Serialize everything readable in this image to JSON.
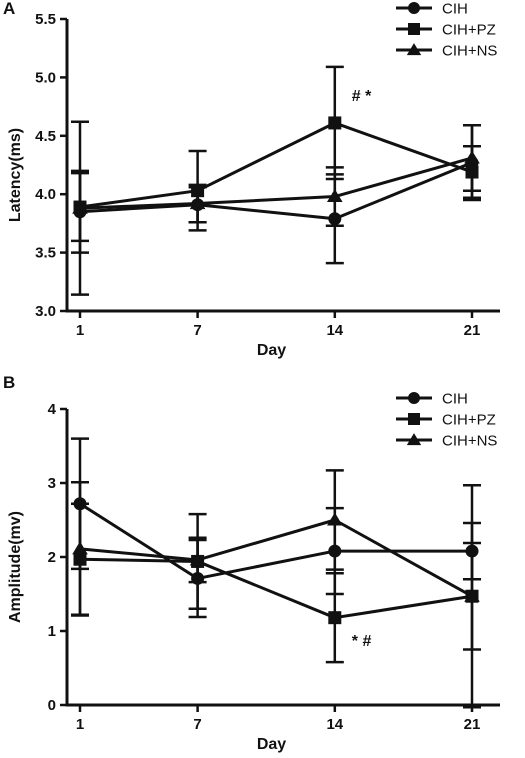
{
  "chart_data": [
    {
      "panel": "A",
      "type": "line",
      "xlabel": "Day",
      "ylabel": "Latency(ms)",
      "x": [
        1,
        7,
        14,
        21
      ],
      "x_ticks": [
        "1",
        "7",
        "14",
        "21"
      ],
      "ylim": [
        3.0,
        5.5
      ],
      "y_ticks": [
        "3.0",
        "3.5",
        "4.0",
        "4.5",
        "5.0",
        "5.5"
      ],
      "legend_position": "top-right",
      "series": [
        {
          "name": "CIH",
          "marker": "circle",
          "values": [
            3.85,
            3.91,
            3.79,
            4.27
          ],
          "error": [
            0.35,
            0.15,
            0.38,
            0.32
          ]
        },
        {
          "name": "CIH+PZ",
          "marker": "square",
          "values": [
            3.89,
            4.03,
            4.61,
            4.19
          ],
          "error": [
            0.29,
            0.34,
            0.48,
            0.22
          ]
        },
        {
          "name": "CIH+NS",
          "marker": "triangle",
          "values": [
            3.88,
            3.92,
            3.98,
            4.31
          ],
          "error": [
            0.74,
            0.16,
            0.25,
            0.28
          ]
        }
      ],
      "annotations": [
        {
          "text": "# *",
          "x": 14,
          "y": 4.85
        }
      ]
    },
    {
      "panel": "B",
      "type": "line",
      "xlabel": "Day",
      "ylabel": "Amplitude(mv)",
      "x": [
        1,
        7,
        14,
        21
      ],
      "x_ticks": [
        "1",
        "7",
        "14",
        "21"
      ],
      "ylim": [
        0,
        4
      ],
      "y_ticks": [
        "0",
        "1",
        "2",
        "3",
        "4"
      ],
      "legend_position": "top-right",
      "series": [
        {
          "name": "CIH",
          "marker": "circle",
          "values": [
            2.72,
            1.71,
            2.08,
            2.08
          ],
          "error": [
            0.88,
            0.52,
            0.58,
            0.38
          ]
        },
        {
          "name": "CIH+PZ",
          "marker": "square",
          "values": [
            1.97,
            1.94,
            1.18,
            1.47
          ],
          "error": [
            0.75,
            0.64,
            0.6,
            0.72
          ]
        },
        {
          "name": "CIH+NS",
          "marker": "triangle",
          "values": [
            2.11,
            1.96,
            2.5,
            1.47
          ],
          "error": [
            0.9,
            0.3,
            0.67,
            1.5
          ]
        }
      ],
      "annotations": [
        {
          "text": "* #",
          "x": 14,
          "y": 0.88
        }
      ]
    }
  ]
}
